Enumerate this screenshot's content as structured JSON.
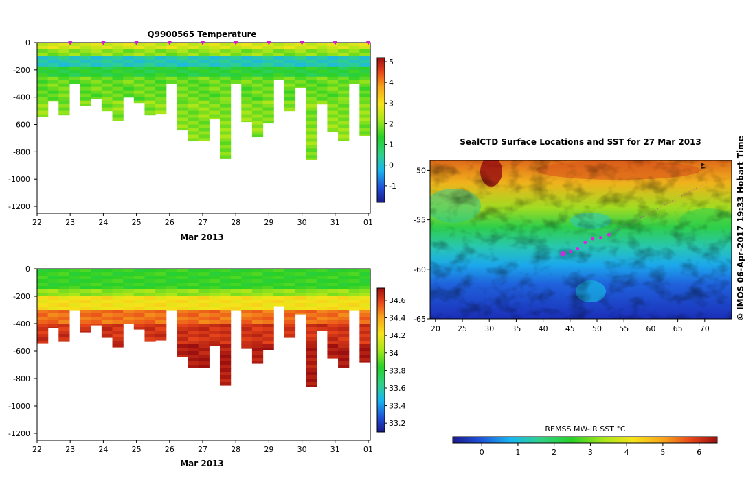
{
  "chart_data": [
    {
      "type": "heatmap",
      "title": "Q9900565  Temperature",
      "xlabel": "Mar 2013",
      "x_ticks": [
        "22",
        "23",
        "24",
        "25",
        "26",
        "27",
        "28",
        "29",
        "30",
        "31",
        "01"
      ],
      "y_ticks": [
        "0",
        "-200",
        "-400",
        "-600",
        "-800",
        "-1000",
        "-1200"
      ],
      "ylim": [
        -1250,
        0
      ],
      "colorbar": {
        "ticks": [
          "5",
          "4",
          "3",
          "2",
          "1",
          "0",
          "-1"
        ],
        "range": [
          -1.8,
          5.2
        ]
      },
      "profile_depths_m": [
        540,
        430,
        530,
        300,
        460,
        410,
        500,
        570,
        400,
        440,
        530,
        520,
        300,
        640,
        720,
        720,
        560,
        850,
        300,
        580,
        690,
        590,
        270,
        500,
        330,
        860,
        450,
        650,
        720,
        300,
        680
      ],
      "markers_x": [
        "23",
        "24",
        "25",
        "26",
        "27",
        "28",
        "29",
        "30",
        "31",
        "01"
      ]
    },
    {
      "type": "heatmap",
      "title": "",
      "xlabel": "Mar 2013",
      "x_ticks": [
        "22",
        "23",
        "24",
        "25",
        "26",
        "27",
        "28",
        "29",
        "30",
        "31",
        "01"
      ],
      "y_ticks": [
        "0",
        "-200",
        "-400",
        "-600",
        "-800",
        "-1000",
        "-1200"
      ],
      "ylim": [
        -1250,
        0
      ],
      "colorbar": {
        "ticks": [
          "34.6",
          "34.4",
          "34.2",
          "34",
          "33.8",
          "33.6",
          "33.4",
          "33.2"
        ],
        "range": [
          33.1,
          34.74
        ]
      },
      "profile_depths_m": [
        540,
        430,
        530,
        300,
        460,
        410,
        500,
        570,
        400,
        440,
        530,
        520,
        300,
        640,
        720,
        720,
        560,
        850,
        300,
        580,
        690,
        590,
        270,
        500,
        330,
        860,
        450,
        650,
        720,
        300,
        680
      ]
    },
    {
      "type": "heatmap",
      "title": "SealCTD Surface Locations and SST for 27 Mar 2013",
      "x_ticks": [
        "20",
        "25",
        "30",
        "35",
        "40",
        "45",
        "50",
        "55",
        "60",
        "65",
        "70"
      ],
      "y_ticks": [
        "-50",
        "-55",
        "-60",
        "-65"
      ],
      "xlim": [
        19,
        75
      ],
      "ylim": [
        -65,
        -49
      ],
      "track_lon": [
        43.7,
        45.1,
        46.4,
        47.8,
        49.2,
        50.7,
        52.2
      ],
      "track_lat": [
        -58.4,
        -58.2,
        -57.9,
        -57.3,
        -56.9,
        -56.8,
        -56.5
      ],
      "colorbar": {
        "label": "REMSS MW-IR SST °C",
        "ticks": [
          "0",
          "1",
          "2",
          "3",
          "4",
          "5",
          "6"
        ],
        "range": [
          -0.8,
          6.5
        ]
      }
    }
  ],
  "credit": "© IMOS 06-Apr-2017 19:33 Hobart Time"
}
